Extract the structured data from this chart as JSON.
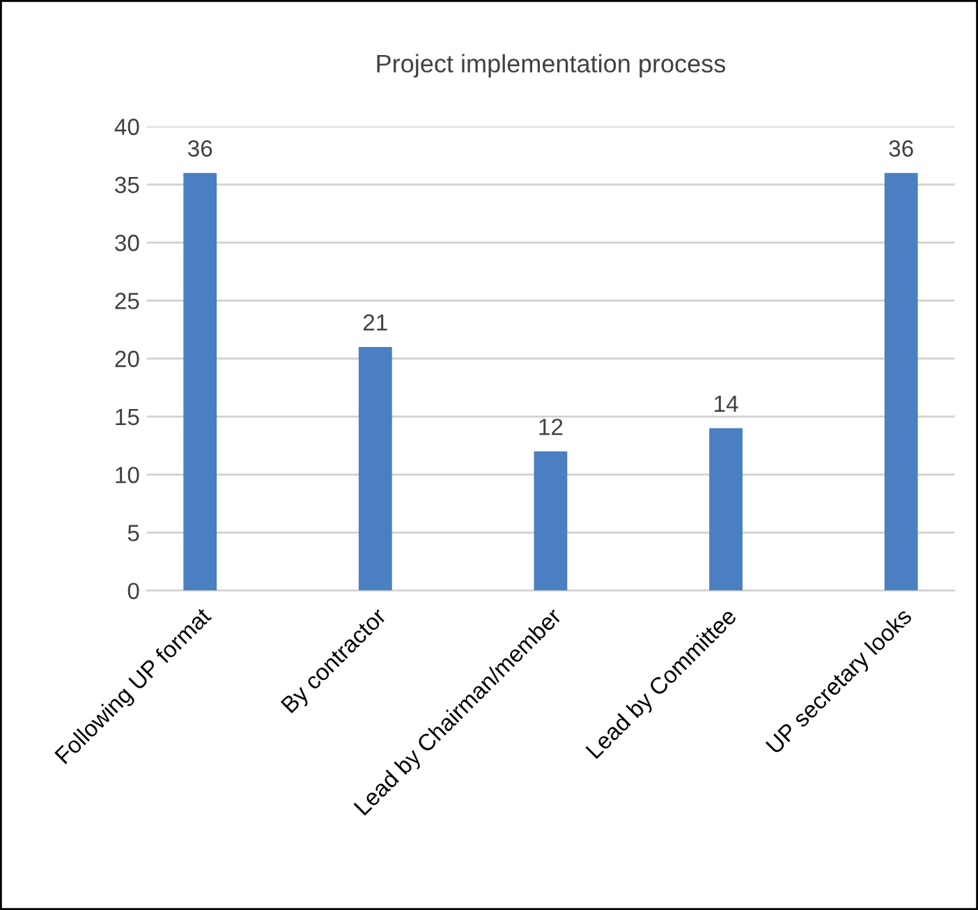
{
  "chart_data": {
    "type": "bar",
    "title": "Project implementation process",
    "categories": [
      "Following UP format",
      "By contractor",
      "Lead by Chairman/member",
      "Lead by Committee",
      "UP secretary looks"
    ],
    "values": [
      36,
      21,
      12,
      14,
      36
    ],
    "color": "#4a7fc1",
    "ylim": [
      0,
      40
    ],
    "yticks": [
      0,
      5,
      10,
      15,
      20,
      25,
      30,
      35,
      40
    ],
    "grid": "y",
    "data_labels": true,
    "legend": false
  }
}
